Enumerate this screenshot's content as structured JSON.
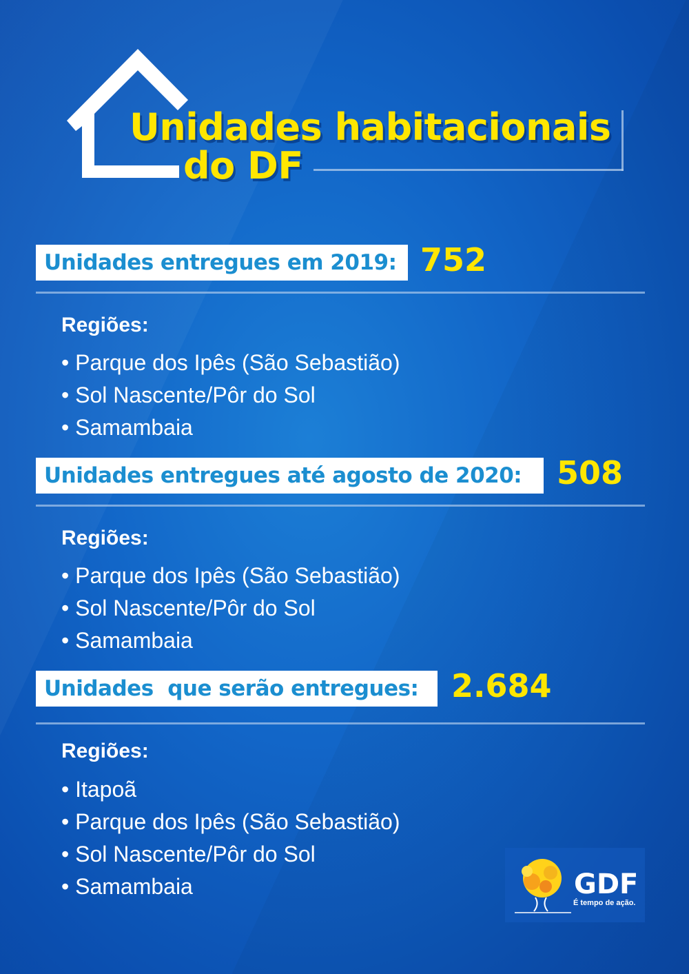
{
  "title": {
    "line1": "Unidades habitacionais",
    "line2": "do DF"
  },
  "sections": [
    {
      "label": "Unidades entregues em 2019:",
      "value": "752",
      "regions_label": "Regiões:",
      "regions": [
        "Parque dos Ipês (São Sebastião)",
        "Sol Nascente/Pôr do Sol",
        "Samambaia"
      ]
    },
    {
      "label": "Unidades entregues até agosto de 2020:",
      "value": "508",
      "regions_label": "Regiões:",
      "regions": [
        "Parque dos Ipês (São Sebastião)",
        "Sol Nascente/Pôr do Sol",
        "Samambaia"
      ]
    },
    {
      "label": "Unidades  que serão entregues:",
      "value": "2.684",
      "regions_label": "Regiões:",
      "regions": [
        "Itapoã",
        "Parque dos Ipês (São Sebastião)",
        "Sol Nascente/Pôr do Sol",
        "Samambaia"
      ]
    }
  ],
  "logo": {
    "name": "GDF",
    "slogan": "É tempo de ação."
  },
  "colors": {
    "yellow": "#ffe600",
    "label_blue": "#1b8ed0"
  }
}
